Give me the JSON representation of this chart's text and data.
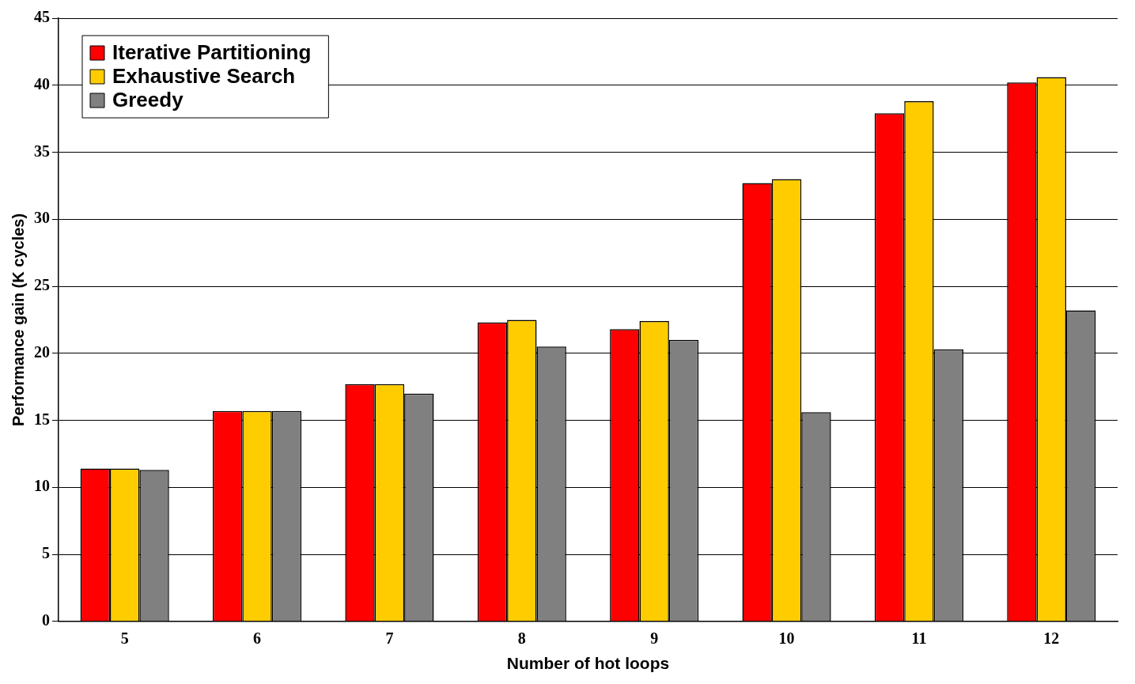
{
  "chart_data": {
    "type": "bar",
    "xlabel": "Number of hot loops",
    "ylabel": "Performance gain (K cycles)",
    "categories": [
      "5",
      "6",
      "7",
      "8",
      "9",
      "10",
      "11",
      "12"
    ],
    "series": [
      {
        "name": "Iterative Partitioning",
        "color": "#ff0000",
        "values": [
          11.4,
          15.7,
          17.7,
          22.3,
          21.8,
          32.7,
          37.9,
          40.2
        ]
      },
      {
        "name": "Exhaustive Search",
        "color": "#ffcc00",
        "values": [
          11.4,
          15.7,
          17.7,
          22.5,
          22.4,
          33.0,
          38.8,
          40.6
        ]
      },
      {
        "name": "Greedy",
        "color": "#808080",
        "values": [
          11.3,
          15.7,
          17.0,
          20.5,
          21.0,
          15.6,
          20.3,
          23.2
        ]
      }
    ],
    "ylim": [
      0,
      45
    ],
    "yticks": [
      0,
      5,
      10,
      15,
      20,
      25,
      30,
      35,
      40,
      45
    ],
    "grid": "y",
    "legend": "top left"
  }
}
